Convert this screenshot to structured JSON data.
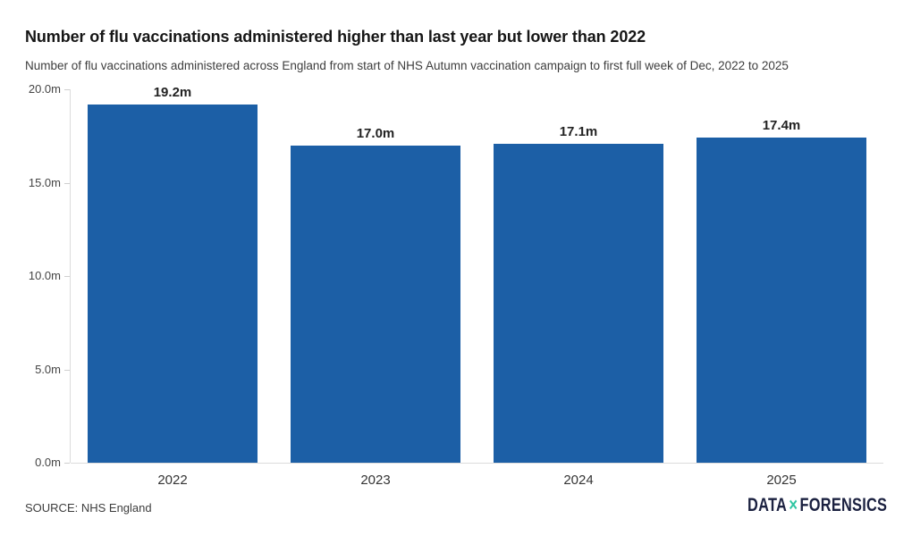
{
  "header": {
    "title": "Number of flu vaccinations administered higher than last year but lower than 2022",
    "subtitle": "Number of flu vaccinations administered across England from start of NHS Autumn vaccination campaign to first full week of Dec, 2022 to 2025"
  },
  "chart_data": {
    "type": "bar",
    "categories": [
      "2022",
      "2023",
      "2024",
      "2025"
    ],
    "values": [
      19.2,
      17.0,
      17.1,
      17.4
    ],
    "value_labels": [
      "19.2m",
      "17.0m",
      "17.1m",
      "17.4m"
    ],
    "unit": "millions of vaccinations",
    "title": "Number of flu vaccinations administered higher than last year but lower than 2022",
    "xlabel": "",
    "ylabel": "",
    "ylim": [
      0,
      20
    ],
    "yticks": [
      {
        "value": 0,
        "label": "0.0m"
      },
      {
        "value": 5,
        "label": "5.0m"
      },
      {
        "value": 10,
        "label": "10.0m"
      },
      {
        "value": 15,
        "label": "15.0m"
      },
      {
        "value": 20,
        "label": "20.0m"
      }
    ],
    "grid": false,
    "legend": false,
    "bar_color": "#1c5fa6",
    "axis_color": "#dbdbdb"
  },
  "footer": {
    "source": "SOURCE: NHS England",
    "logo": {
      "part1": "DATA",
      "separator": "×",
      "part2": "FORENSICS",
      "text_color": "#1b2140",
      "separator_color": "#2fc5a2"
    }
  }
}
